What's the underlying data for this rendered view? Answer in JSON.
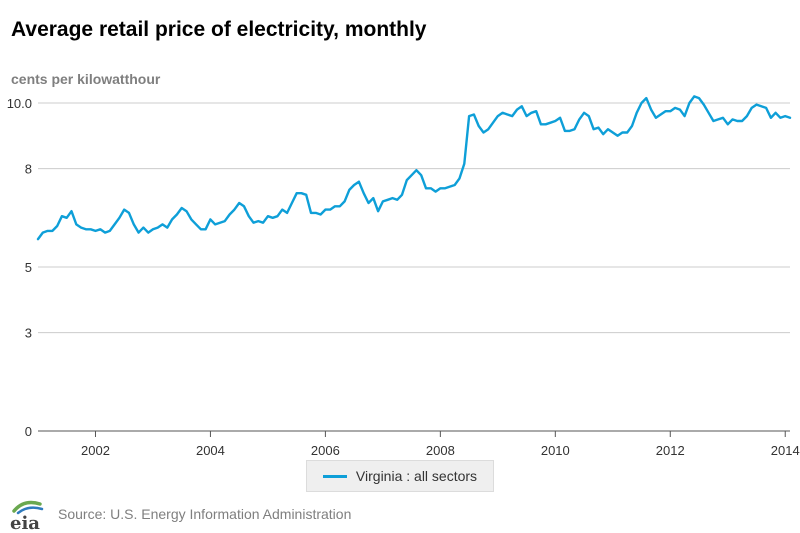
{
  "chart_data": {
    "type": "line",
    "title": "Average retail price of electricity, monthly",
    "ylabel": "cents per kilowatthour",
    "ylim": [
      0,
      10.0
    ],
    "yticks": [
      0,
      3,
      5,
      8,
      10.0
    ],
    "ytick_labels": [
      "0",
      "3",
      "5",
      "8",
      "10.0"
    ],
    "xlim": [
      2001.0,
      2014.083
    ],
    "xticks": [
      2002,
      2004,
      2006,
      2008,
      2010,
      2012,
      2014
    ],
    "xtick_labels": [
      "2002",
      "2004",
      "2006",
      "2008",
      "2010",
      "2012",
      "2014"
    ],
    "grid": true,
    "legend_position": "bottom-center",
    "series": [
      {
        "name": "Virginia : all sectors",
        "color": "#0e9fd8",
        "x_start": "2001-01",
        "frequency": "monthly",
        "values": [
          5.85,
          6.05,
          6.1,
          6.1,
          6.25,
          6.55,
          6.5,
          6.7,
          6.3,
          6.2,
          6.15,
          6.15,
          6.1,
          6.15,
          6.05,
          6.1,
          6.3,
          6.5,
          6.75,
          6.65,
          6.3,
          6.05,
          6.2,
          6.05,
          6.15,
          6.2,
          6.3,
          6.2,
          6.45,
          6.6,
          6.8,
          6.7,
          6.45,
          6.3,
          6.15,
          6.15,
          6.45,
          6.3,
          6.35,
          6.4,
          6.6,
          6.75,
          6.95,
          6.85,
          6.55,
          6.35,
          6.4,
          6.35,
          6.55,
          6.5,
          6.55,
          6.75,
          6.65,
          6.95,
          7.25,
          7.25,
          7.2,
          6.65,
          6.65,
          6.6,
          6.75,
          6.75,
          6.85,
          6.85,
          7.0,
          7.35,
          7.5,
          7.6,
          7.25,
          6.95,
          7.1,
          6.7,
          7.0,
          7.05,
          7.1,
          7.05,
          7.2,
          7.65,
          7.8,
          7.95,
          7.8,
          7.4,
          7.4,
          7.3,
          7.4,
          7.4,
          7.45,
          7.5,
          7.7,
          8.15,
          9.6,
          9.65,
          9.3,
          9.1,
          9.2,
          9.4,
          9.6,
          9.7,
          9.65,
          9.6,
          9.8,
          9.9,
          9.6,
          9.7,
          9.75,
          9.35,
          9.35,
          9.4,
          9.45,
          9.55,
          9.15,
          9.15,
          9.2,
          9.5,
          9.7,
          9.6,
          9.2,
          9.25,
          9.05,
          9.2,
          9.1,
          9.0,
          9.1,
          9.1,
          9.3,
          9.7,
          10.0,
          10.15,
          9.8,
          9.55,
          9.65,
          9.75,
          9.75,
          9.85,
          9.8,
          9.6,
          10.0,
          10.2,
          10.15,
          9.95,
          9.7,
          9.45,
          9.5,
          9.55,
          9.35,
          9.5,
          9.45,
          9.45,
          9.6,
          9.85,
          9.95,
          9.9,
          9.85,
          9.55,
          9.7,
          9.55,
          9.6,
          9.55
        ]
      }
    ]
  },
  "footer": {
    "source_text": "Source: U.S. Energy Information Administration",
    "logo_text": "eia"
  }
}
